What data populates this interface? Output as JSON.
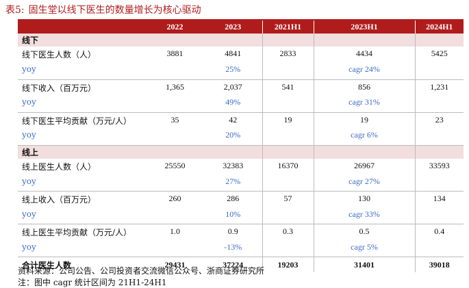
{
  "title": {
    "number": "表5:",
    "text": "固生堂以线下医生的数量增长为核心驱动"
  },
  "columns": [
    "",
    "2022",
    "2023",
    "2021H1",
    "2023H1",
    "2024H1"
  ],
  "sections": [
    {
      "label": "线下",
      "metrics": [
        {
          "label": "线下医生人数（人）",
          "values": [
            "3881",
            "4841",
            "2833",
            "4434",
            "5425"
          ],
          "growth_label": "yoy",
          "growth": [
            "",
            "25%",
            "",
            "cagr 24%",
            ""
          ]
        },
        {
          "label": "线下收入（百万元）",
          "values": [
            "1,365",
            "2,037",
            "541",
            "856",
            "1,231"
          ],
          "growth_label": "yoy",
          "growth": [
            "",
            "49%",
            "",
            "cagr 31%",
            ""
          ]
        },
        {
          "label": "线下医生平均贡献（万元/人）",
          "values": [
            "35",
            "42",
            "19",
            "19",
            "23"
          ],
          "growth_label": "yoy",
          "growth": [
            "",
            "20%",
            "",
            "cagr 6%",
            ""
          ]
        }
      ]
    },
    {
      "label": "线上",
      "metrics": [
        {
          "label": "线上医生人数（人）",
          "values": [
            "25550",
            "32383",
            "16370",
            "26967",
            "33593"
          ],
          "growth_label": "yoy",
          "growth": [
            "",
            "27%",
            "",
            "cagr 27%",
            ""
          ]
        },
        {
          "label": "线上收入（百万元）",
          "values": [
            "260",
            "286",
            "57",
            "130",
            "134"
          ],
          "growth_label": "yoy",
          "growth": [
            "",
            "10%",
            "",
            "cagr 33%",
            ""
          ]
        },
        {
          "label": "线上医生平均贡献（万元/人）",
          "values": [
            "1.0",
            "0.9",
            "0.3",
            "0.5",
            "0.4"
          ],
          "growth_label": "yoy",
          "growth": [
            "",
            "-13%",
            "",
            "cagr 5%",
            ""
          ]
        }
      ]
    }
  ],
  "total": {
    "label": "合计医生人数",
    "values": [
      "29431",
      "37224",
      "19203",
      "31401",
      "39018"
    ]
  },
  "footer": {
    "source": "资料来源：公司公告、公司投资者交流微信公众号、浙商证券研究所",
    "note": "注：图中 cagr 统计区间为 21H1-24H1"
  }
}
